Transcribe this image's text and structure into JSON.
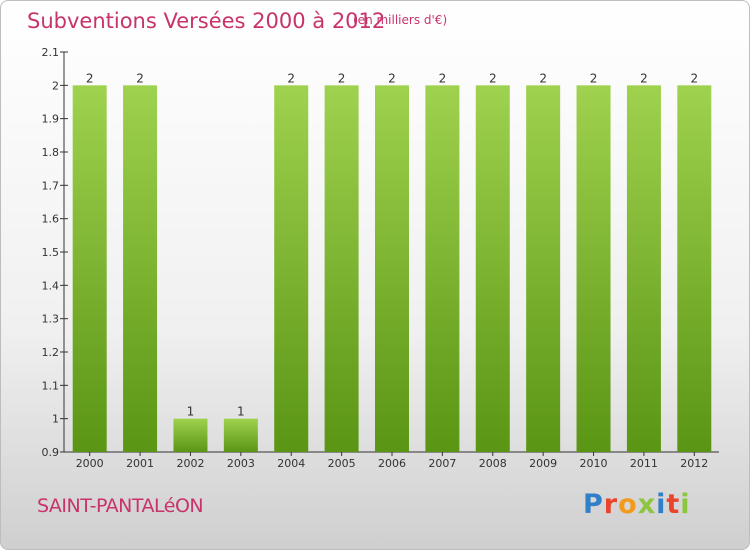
{
  "header": {
    "title": "Subventions Versées 2000 à 2012",
    "subtitle": "(en milliers d'€)"
  },
  "footer": {
    "commune": "SAINT-PANTALéON",
    "logo": "Proxiti"
  },
  "colors": {
    "title": "#c8336b",
    "bar_light": "#9fd24e",
    "bar_dark": "#5a9514"
  },
  "chart_data": {
    "type": "bar",
    "categories": [
      "2000",
      "2001",
      "2002",
      "2003",
      "2004",
      "2005",
      "2006",
      "2007",
      "2008",
      "2009",
      "2010",
      "2011",
      "2012"
    ],
    "values": [
      2,
      2,
      1,
      1,
      2,
      2,
      2,
      2,
      2,
      2,
      2,
      2,
      2
    ],
    "data_labels": [
      "2",
      "2",
      "1",
      "1",
      "2",
      "2",
      "2",
      "2",
      "2",
      "2",
      "2",
      "2",
      "2"
    ],
    "ylim": [
      0.9,
      2.1
    ],
    "yticks": [
      "0.9",
      "1",
      "1.1",
      "1.2",
      "1.3",
      "1.4",
      "1.5",
      "1.6",
      "1.7",
      "1.8",
      "1.9",
      "2",
      "2.1"
    ],
    "grid": false,
    "legend": "none"
  }
}
